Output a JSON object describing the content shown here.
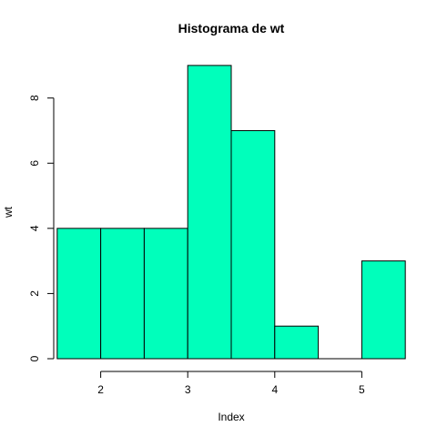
{
  "chart_data": {
    "type": "bar",
    "title": "Histograma de  wt",
    "xlabel": "Index",
    "ylabel": "wt",
    "bins": [
      {
        "x0": 1.5,
        "x1": 2.0,
        "count": 4
      },
      {
        "x0": 2.0,
        "x1": 2.5,
        "count": 4
      },
      {
        "x0": 2.5,
        "x1": 3.0,
        "count": 4
      },
      {
        "x0": 3.0,
        "x1": 3.5,
        "count": 9
      },
      {
        "x0": 3.5,
        "x1": 4.0,
        "count": 7
      },
      {
        "x0": 4.0,
        "x1": 4.5,
        "count": 1
      },
      {
        "x0": 4.5,
        "x1": 5.0,
        "count": 0
      },
      {
        "x0": 5.0,
        "x1": 5.5,
        "count": 3
      }
    ],
    "xticks": [
      2,
      3,
      4,
      5
    ],
    "yticks": [
      0,
      2,
      4,
      6,
      8
    ],
    "xlim": [
      1.46,
      5.54
    ],
    "ylim": [
      0,
      9.36
    ],
    "bar_color": "#00FFBB",
    "grid": false,
    "legend": "none"
  }
}
